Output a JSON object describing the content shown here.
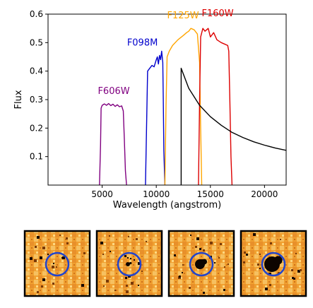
{
  "chart_data": {
    "type": "line",
    "xlabel": "Wavelength (angstrom)",
    "ylabel": "Flux",
    "xlim": [
      0,
      22000
    ],
    "ylim": [
      0.0,
      0.6
    ],
    "xticks": [
      5000,
      10000,
      15000,
      20000
    ],
    "yticks": [
      0.1,
      0.2,
      0.3,
      0.4,
      0.5,
      0.6
    ],
    "grid": false,
    "series": [
      {
        "name": "F606W",
        "color": "#800080",
        "x": [
          4750,
          4850,
          4900,
          5000,
          5200,
          5400,
          5600,
          5800,
          6000,
          6200,
          6400,
          6600,
          6800,
          6950,
          7050,
          7150,
          7250
        ],
        "y": [
          0.0,
          0.14,
          0.27,
          0.28,
          0.285,
          0.28,
          0.286,
          0.279,
          0.284,
          0.276,
          0.282,
          0.275,
          0.278,
          0.26,
          0.16,
          0.05,
          0.0
        ]
      },
      {
        "name": "F098M",
        "color": "#0000cc",
        "x": [
          9000,
          9100,
          9200,
          9400,
          9600,
          9800,
          10000,
          10100,
          10200,
          10300,
          10400,
          10500,
          10600,
          10650,
          10700,
          10800
        ],
        "y": [
          0.0,
          0.2,
          0.4,
          0.41,
          0.42,
          0.415,
          0.44,
          0.45,
          0.425,
          0.455,
          0.44,
          0.47,
          0.43,
          0.3,
          0.12,
          0.0
        ]
      },
      {
        "name": "F125W",
        "color": "#ffa500",
        "x": [
          10800,
          10900,
          11000,
          11200,
          11500,
          12000,
          12500,
          12800,
          13000,
          13200,
          13500,
          13800,
          14000,
          14100,
          14200
        ],
        "y": [
          0.0,
          0.28,
          0.45,
          0.47,
          0.49,
          0.51,
          0.525,
          0.535,
          0.54,
          0.55,
          0.545,
          0.53,
          0.43,
          0.2,
          0.0
        ]
      },
      {
        "name": "F160W",
        "color": "#dd0000",
        "x": [
          13900,
          14000,
          14100,
          14300,
          14500,
          14800,
          15000,
          15300,
          15600,
          16000,
          16300,
          16600,
          16700,
          16800,
          16900,
          17000
        ],
        "y": [
          0.0,
          0.3,
          0.52,
          0.55,
          0.54,
          0.55,
          0.52,
          0.535,
          0.51,
          0.5,
          0.495,
          0.49,
          0.47,
          0.3,
          0.1,
          0.0
        ]
      },
      {
        "name": "",
        "color": "#000000",
        "x": [
          12300,
          12300,
          13000,
          14000,
          15000,
          16000,
          17000,
          18000,
          19000,
          20000,
          21000,
          22000
        ],
        "y": [
          0.0,
          0.41,
          0.34,
          0.28,
          0.24,
          0.21,
          0.185,
          0.167,
          0.152,
          0.14,
          0.13,
          0.122
        ]
      }
    ],
    "labels": [
      {
        "text": "F606W",
        "color": "#800080",
        "x": 4600,
        "y": 0.32
      },
      {
        "text": "F098M",
        "color": "#0000cc",
        "x": 7300,
        "y": 0.49
      },
      {
        "text": "F125W",
        "color": "#ffa500",
        "x": 11000,
        "y": 0.585
      },
      {
        "text": "F160W",
        "color": "#dd0000",
        "x": 14200,
        "y": 0.592
      }
    ]
  },
  "cutouts": {
    "count": 4,
    "circle_color": "#2244cc",
    "blob_size": [
      "none",
      "small",
      "medium",
      "large"
    ]
  }
}
